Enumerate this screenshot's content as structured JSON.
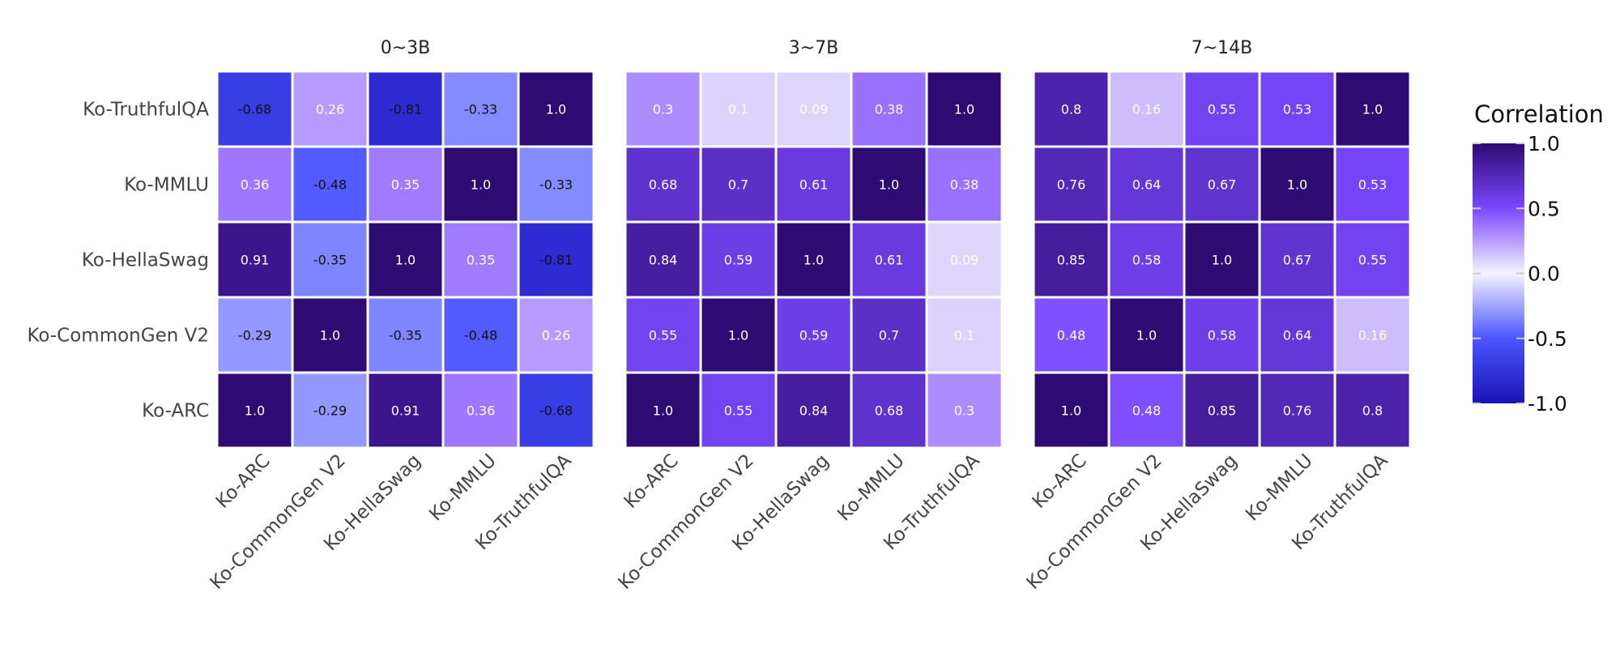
{
  "chart_data": {
    "type": "heatmap",
    "row_labels": [
      "Ko-TruthfulQA",
      "Ko-MMLU",
      "Ko-HellaSwag",
      "Ko-CommonGen V2",
      "Ko-ARC"
    ],
    "col_labels": [
      "Ko-ARC",
      "Ko-CommonGen V2",
      "Ko-HellaSwag",
      "Ko-MMLU",
      "Ko-TruthfulQA"
    ],
    "panels": [
      {
        "title": "0~3B",
        "values": [
          [
            -0.68,
            0.26,
            -0.81,
            -0.33,
            1.0
          ],
          [
            0.36,
            -0.48,
            0.35,
            1.0,
            -0.33
          ],
          [
            0.91,
            -0.35,
            1.0,
            0.35,
            -0.81
          ],
          [
            -0.29,
            1.0,
            -0.35,
            -0.48,
            0.26
          ],
          [
            1.0,
            -0.29,
            0.91,
            0.36,
            -0.68
          ]
        ],
        "labels": [
          [
            "-0.68",
            "0.26",
            "-0.81",
            "-0.33",
            "1.0"
          ],
          [
            "0.36",
            "-0.48",
            "0.35",
            "1.0",
            "-0.33"
          ],
          [
            "0.91",
            "-0.35",
            "1.0",
            "0.35",
            "-0.81"
          ],
          [
            "-0.29",
            "1.0",
            "-0.35",
            "-0.48",
            "0.26"
          ],
          [
            "1.0",
            "-0.29",
            "0.91",
            "0.36",
            "-0.68"
          ]
        ]
      },
      {
        "title": "3~7B",
        "values": [
          [
            0.3,
            0.1,
            0.09,
            0.38,
            1.0
          ],
          [
            0.68,
            0.7,
            0.61,
            1.0,
            0.38
          ],
          [
            0.84,
            0.59,
            1.0,
            0.61,
            0.09
          ],
          [
            0.55,
            1.0,
            0.59,
            0.7,
            0.1
          ],
          [
            1.0,
            0.55,
            0.84,
            0.68,
            0.3
          ]
        ],
        "labels": [
          [
            "0.3",
            "0.1",
            "0.09",
            "0.38",
            "1.0"
          ],
          [
            "0.68",
            "0.7",
            "0.61",
            "1.0",
            "0.38"
          ],
          [
            "0.84",
            "0.59",
            "1.0",
            "0.61",
            "0.09"
          ],
          [
            "0.55",
            "1.0",
            "0.59",
            "0.7",
            "0.1"
          ],
          [
            "1.0",
            "0.55",
            "0.84",
            "0.68",
            "0.3"
          ]
        ]
      },
      {
        "title": "7~14B",
        "values": [
          [
            0.8,
            0.16,
            0.55,
            0.53,
            1.0
          ],
          [
            0.76,
            0.64,
            0.67,
            1.0,
            0.53
          ],
          [
            0.85,
            0.58,
            1.0,
            0.67,
            0.55
          ],
          [
            0.48,
            1.0,
            0.58,
            0.64,
            0.16
          ],
          [
            1.0,
            0.48,
            0.85,
            0.76,
            0.8
          ]
        ],
        "labels": [
          [
            "0.8",
            "0.16",
            "0.55",
            "0.53",
            "1.0"
          ],
          [
            "0.76",
            "0.64",
            "0.67",
            "1.0",
            "0.53"
          ],
          [
            "0.85",
            "0.58",
            "1.0",
            "0.67",
            "0.55"
          ],
          [
            "0.48",
            "1.0",
            "0.58",
            "0.64",
            "0.16"
          ],
          [
            "1.0",
            "0.48",
            "0.85",
            "0.76",
            "0.8"
          ]
        ]
      }
    ],
    "colorbar": {
      "title": "Correlation",
      "range": [
        -1.0,
        1.0
      ],
      "tick_values": [
        1.0,
        0.5,
        0.0,
        -0.5,
        -1.0
      ],
      "tick_labels": [
        "1.0",
        "0.5",
        "0.0",
        "-0.5",
        "-1.0"
      ]
    },
    "colors": {
      "low": "#1a12b5",
      "mid_low": "#4b55ff",
      "neutral": "#f4f4fc",
      "mid_high": "#7b48ff",
      "high": "#2e0a73"
    }
  }
}
